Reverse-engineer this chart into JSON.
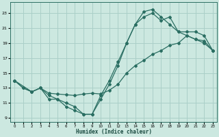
{
  "xlabel": "Humidex (Indice chaleur)",
  "xlim": [
    -0.5,
    23.5
  ],
  "ylim": [
    8.5,
    24.5
  ],
  "yticks": [
    9,
    11,
    13,
    15,
    17,
    19,
    21,
    23
  ],
  "xticks": [
    0,
    1,
    2,
    3,
    4,
    5,
    6,
    7,
    8,
    9,
    10,
    11,
    12,
    13,
    14,
    15,
    16,
    17,
    18,
    19,
    20,
    21,
    22,
    23
  ],
  "bg_color": "#cce8e0",
  "grid_color": "#aacfc8",
  "line_color": "#2a6e62",
  "curve1": {
    "x": [
      0,
      1,
      2,
      3,
      4,
      5,
      6,
      7,
      8,
      9,
      10,
      11,
      12,
      13,
      14,
      15,
      16,
      17,
      18,
      19,
      20,
      21,
      22,
      23
    ],
    "y": [
      14,
      13,
      12.5,
      13,
      12,
      11.5,
      11,
      10.5,
      9.5,
      9.5,
      12,
      14,
      16.5,
      19,
      21.5,
      23.2,
      23.5,
      22.5,
      21.5,
      20.5,
      20.0,
      19.5,
      19.3,
      18.0
    ]
  },
  "curve2": {
    "x": [
      0,
      2,
      3,
      4,
      5,
      6,
      7,
      8,
      9,
      10,
      11,
      12,
      13,
      14,
      15,
      16,
      17,
      18,
      19,
      20,
      21,
      22,
      23
    ],
    "y": [
      14,
      12.5,
      13,
      11.5,
      11.5,
      10.5,
      10,
      9.5,
      9.5,
      11.5,
      13.5,
      16,
      19.0,
      21.5,
      22.5,
      23.0,
      22.0,
      22.5,
      20.5,
      20.5,
      20.5,
      20.0,
      18.0
    ]
  },
  "curve3": {
    "x": [
      0,
      1,
      2,
      3,
      4,
      5,
      6,
      7,
      8,
      9,
      10,
      11,
      12,
      13,
      14,
      15,
      16,
      17,
      18,
      19,
      20,
      21,
      22,
      23
    ],
    "y": [
      14,
      13,
      12.5,
      13,
      12.3,
      12.2,
      12.1,
      12.0,
      12.2,
      12.3,
      12.2,
      12.7,
      13.5,
      15.0,
      16.0,
      16.7,
      17.5,
      18.0,
      18.7,
      19.0,
      20.0,
      19.5,
      19.0,
      18.0
    ]
  }
}
